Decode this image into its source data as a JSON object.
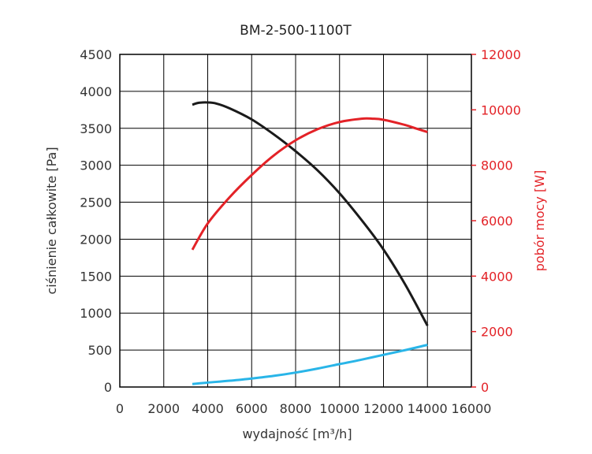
{
  "chart_data": {
    "type": "line",
    "title": "BM-2-500-1100T",
    "xlabel": "wydajność [m³/h]",
    "ylabel": "ciśnienie całkowite [Pa]",
    "y2label": "pobór mocy [W]",
    "xlim": [
      0,
      16000
    ],
    "ylim": [
      0,
      4500
    ],
    "y2lim": [
      0,
      12000
    ],
    "x_ticks": [
      "0",
      "2000",
      "4000",
      "6000",
      "8000",
      "10000",
      "12000",
      "14000",
      "16000"
    ],
    "y_ticks": [
      "0",
      "500",
      "1000",
      "1500",
      "2000",
      "2500",
      "3000",
      "3500",
      "4000",
      "4500"
    ],
    "y2_ticks": [
      "0",
      "2000",
      "4000",
      "6000",
      "8000",
      "10000",
      "12000"
    ],
    "grid": true,
    "series": [
      {
        "axis": "left",
        "color": "#1a1a1a",
        "x": [
          3300,
          3600,
          4000,
          4400,
          5000,
          6000,
          7000,
          8000,
          9000,
          10000,
          11000,
          12000,
          13000,
          14000
        ],
        "y": [
          3820,
          3845,
          3850,
          3835,
          3770,
          3620,
          3420,
          3190,
          2930,
          2620,
          2260,
          1860,
          1380,
          830
        ]
      },
      {
        "axis": "left",
        "color": "#29b5e8",
        "x": [
          3300,
          4000,
          5000,
          6000,
          7000,
          8000,
          9000,
          10000,
          11000,
          12000,
          13000,
          14000
        ],
        "y": [
          40,
          60,
          85,
          115,
          150,
          195,
          250,
          310,
          370,
          435,
          500,
          570
        ]
      },
      {
        "axis": "right",
        "color": "#e32227",
        "x": [
          3300,
          4000,
          5000,
          6000,
          7000,
          8000,
          9000,
          10000,
          11000,
          11500,
          12000,
          13000,
          13500,
          14000
        ],
        "y": [
          4950,
          5900,
          6850,
          7650,
          8350,
          8900,
          9300,
          9560,
          9680,
          9680,
          9640,
          9450,
          9320,
          9200
        ]
      }
    ],
    "colors": {
      "axis_right": "#e32227",
      "grid": "#000000"
    }
  }
}
